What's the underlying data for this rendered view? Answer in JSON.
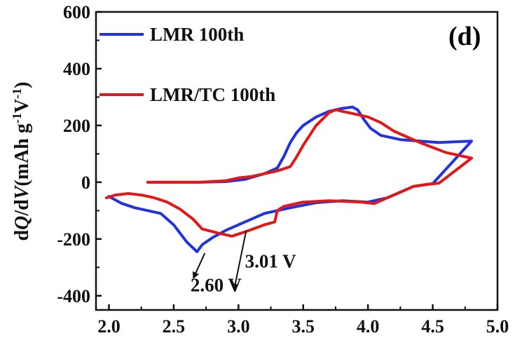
{
  "chart_data": {
    "type": "line",
    "panel_label": "(d)",
    "xlabel": "",
    "ylabel_parts": [
      "d",
      "Q",
      "/d",
      "V",
      "(mAh g",
      "-1",
      "V",
      "-1",
      ")"
    ],
    "xlim": [
      1.9,
      5.0
    ],
    "ylim": [
      -450,
      600
    ],
    "xticks": [
      2.0,
      2.5,
      3.0,
      3.5,
      4.0,
      4.5,
      5.0
    ],
    "xtick_labels": [
      "2.0",
      "2.5",
      "3.0",
      "3.5",
      "4.0",
      "4.5",
      "5.0"
    ],
    "yticks": [
      -400,
      -200,
      0,
      200,
      400,
      600
    ],
    "ytick_labels": [
      "-400",
      "-200",
      "0",
      "200",
      "400",
      "600"
    ],
    "legend_position": "top-left",
    "series": [
      {
        "name": "LMR 100th",
        "color": "#2233dd",
        "x": [
          2.3,
          2.5,
          2.7,
          2.9,
          3.05,
          3.2,
          3.3,
          3.35,
          3.4,
          3.45,
          3.5,
          3.6,
          3.7,
          3.8,
          3.88,
          3.92,
          3.97,
          4.02,
          4.1,
          4.25,
          4.4,
          4.55,
          4.7,
          4.8,
          4.5,
          4.35,
          4.25,
          4.15,
          4.0,
          3.8,
          3.6,
          3.4,
          3.3,
          3.2,
          3.0,
          2.9,
          2.8,
          2.72,
          2.68,
          2.6,
          2.5,
          2.4,
          2.3,
          2.2,
          2.1,
          2.0
        ],
        "y": [
          0,
          0,
          0,
          2,
          10,
          30,
          50,
          90,
          140,
          175,
          200,
          230,
          250,
          260,
          265,
          255,
          220,
          190,
          165,
          150,
          145,
          140,
          143,
          145,
          -5,
          -15,
          -35,
          -55,
          -70,
          -65,
          -72,
          -90,
          -100,
          -110,
          -150,
          -170,
          -195,
          -220,
          -245,
          -210,
          -150,
          -110,
          -100,
          -90,
          -75,
          -50
        ]
      },
      {
        "name": "LMR/TC 100th",
        "color": "#e01818",
        "x": [
          2.3,
          2.5,
          2.7,
          2.9,
          3.0,
          3.1,
          3.2,
          3.3,
          3.4,
          3.45,
          3.5,
          3.6,
          3.7,
          3.75,
          3.8,
          3.9,
          4.0,
          4.1,
          4.2,
          4.4,
          4.6,
          4.8,
          4.55,
          4.45,
          4.35,
          4.25,
          4.15,
          4.05,
          3.95,
          3.7,
          3.5,
          3.35,
          3.3,
          3.28,
          3.2,
          3.05,
          2.95,
          2.85,
          2.72,
          2.65,
          2.55,
          2.45,
          2.35,
          2.25,
          2.15,
          2.05,
          1.98
        ],
        "y": [
          0,
          0,
          0,
          5,
          15,
          20,
          30,
          40,
          55,
          90,
          130,
          200,
          245,
          255,
          250,
          240,
          230,
          210,
          180,
          140,
          105,
          85,
          -3,
          -8,
          -15,
          -35,
          -55,
          -75,
          -70,
          -65,
          -70,
          -85,
          -100,
          -140,
          -150,
          -175,
          -190,
          -180,
          -165,
          -130,
          -95,
          -70,
          -55,
          -45,
          -40,
          -45,
          -55
        ]
      }
    ],
    "annotations": [
      {
        "text": "2.60 V",
        "x": 2.63,
        "y": -385,
        "arrow_from": [
          2.74,
          -250
        ],
        "arrow_to": [
          2.66,
          -330
        ]
      },
      {
        "text": "3.01 V",
        "x": 3.05,
        "y": -300,
        "arrow_from": [
          3.06,
          -170
        ],
        "arrow_to": [
          2.97,
          -370
        ]
      }
    ]
  }
}
